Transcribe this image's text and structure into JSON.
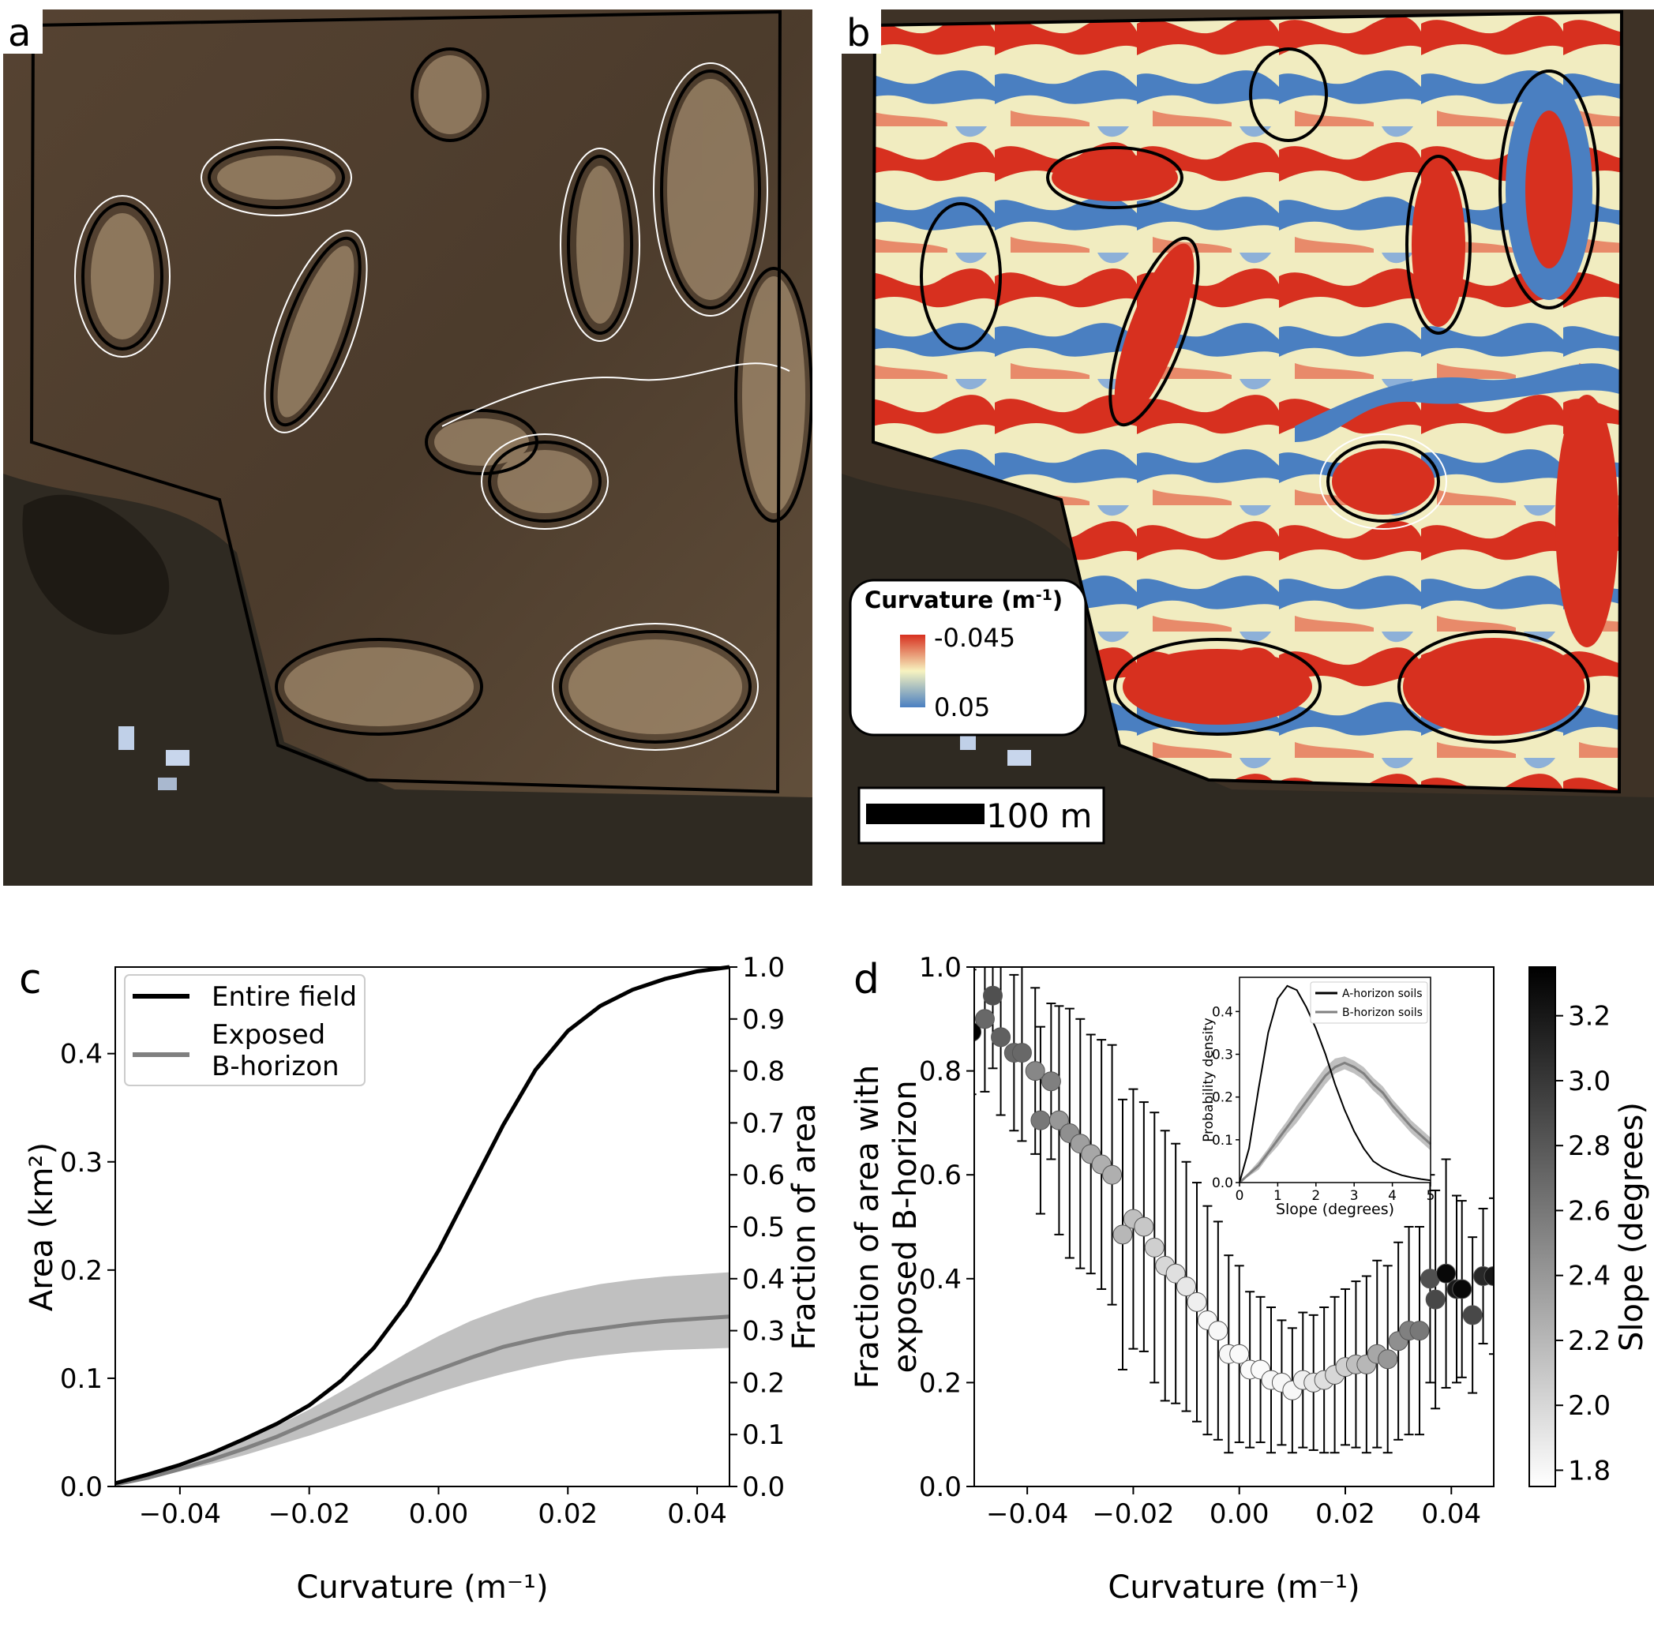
{
  "panels": {
    "a": {
      "letter": "a"
    },
    "b": {
      "letter": "b",
      "legend_title_main": "Curvature (m",
      "legend_title_exp": "-1",
      "legend_title_end": ")",
      "legend_max": "-0.045",
      "legend_min": "0.05",
      "scale_bar_label": "100 m"
    },
    "c": {
      "letter": "c"
    },
    "d": {
      "letter": "d"
    }
  },
  "colors": {
    "ink": "#000000",
    "gray_series": "#808080",
    "gray_band": "#c0c0c0",
    "curv_neg": "#d7301f",
    "curv_mid": "#f7f3c0",
    "curv_pos": "#4a7fc1",
    "soil_dark": "#4e3d2d",
    "soil_light": "#b59c7c"
  },
  "chart_data": [
    {
      "panel": "c",
      "type": "line",
      "xlabel": "Curvature (m⁻¹)",
      "ylabel": "Area (km²)",
      "ylabel_right": "Fraction of area",
      "xlim": [
        -0.05,
        0.045
      ],
      "ylim": [
        0,
        0.48
      ],
      "ylim_right": [
        0,
        1.0
      ],
      "xticks": [
        "-0.04",
        "-0.02",
        "0.00",
        "0.02",
        "0.04"
      ],
      "yticks": [
        "0.0",
        "0.1",
        "0.2",
        "0.3",
        "0.4"
      ],
      "yticks_right": [
        "0.0",
        "0.1",
        "0.2",
        "0.3",
        "0.4",
        "0.5",
        "0.6",
        "0.7",
        "0.8",
        "0.9",
        "1.0"
      ],
      "legend_position": "top-left",
      "x": [
        -0.05,
        -0.045,
        -0.04,
        -0.035,
        -0.03,
        -0.025,
        -0.02,
        -0.015,
        -0.01,
        -0.005,
        0.0,
        0.005,
        0.01,
        0.015,
        0.02,
        0.025,
        0.03,
        0.035,
        0.04,
        0.045
      ],
      "series": [
        {
          "name": "Entire field",
          "values": [
            0.003,
            0.011,
            0.02,
            0.031,
            0.044,
            0.058,
            0.075,
            0.098,
            0.128,
            0.168,
            0.218,
            0.276,
            0.334,
            0.385,
            0.421,
            0.444,
            0.459,
            0.469,
            0.476,
            0.48
          ]
        },
        {
          "name": "Exposed B-horizon",
          "values": [
            0.002,
            0.008,
            0.016,
            0.025,
            0.035,
            0.046,
            0.059,
            0.072,
            0.085,
            0.097,
            0.108,
            0.119,
            0.129,
            0.136,
            0.142,
            0.146,
            0.15,
            0.153,
            0.155,
            0.157
          ],
          "lower": [
            0.002,
            0.007,
            0.014,
            0.021,
            0.029,
            0.038,
            0.047,
            0.057,
            0.067,
            0.077,
            0.087,
            0.096,
            0.104,
            0.111,
            0.117,
            0.121,
            0.124,
            0.126,
            0.127,
            0.128
          ],
          "upper": [
            0.002,
            0.009,
            0.018,
            0.029,
            0.042,
            0.056,
            0.071,
            0.088,
            0.106,
            0.123,
            0.139,
            0.153,
            0.164,
            0.174,
            0.181,
            0.187,
            0.191,
            0.194,
            0.196,
            0.198
          ]
        }
      ]
    },
    {
      "panel": "d",
      "type": "scatter",
      "xlabel": "Curvature (m⁻¹)",
      "ylabel_line1": "Fraction of area with",
      "ylabel_line2": "exposed B-horizon",
      "colorbar_label": "Slope (degrees)",
      "colorbar_range": [
        1.75,
        3.35
      ],
      "colorbar_ticks": [
        "1.8",
        "2.0",
        "2.2",
        "2.4",
        "2.6",
        "2.8",
        "3.0",
        "3.2"
      ],
      "xlim": [
        -0.05,
        0.048
      ],
      "ylim": [
        0,
        1.0
      ],
      "xticks": [
        "-0.04",
        "-0.02",
        "0.00",
        "0.02",
        "0.04"
      ],
      "yticks": [
        "0.0",
        "0.2",
        "0.4",
        "0.6",
        "0.8",
        "1.0"
      ],
      "points": [
        {
          "x": -0.0505,
          "y": 0.875,
          "err": 0.12,
          "slope": 3.35
        },
        {
          "x": -0.048,
          "y": 0.9,
          "err": 0.14,
          "slope": 2.7
        },
        {
          "x": -0.0465,
          "y": 0.945,
          "err": 0.14,
          "slope": 2.85
        },
        {
          "x": -0.045,
          "y": 0.865,
          "err": 0.15,
          "slope": 2.75
        },
        {
          "x": -0.0425,
          "y": 0.835,
          "err": 0.15,
          "slope": 2.7
        },
        {
          "x": -0.041,
          "y": 0.835,
          "err": 0.17,
          "slope": 2.7
        },
        {
          "x": -0.0385,
          "y": 0.8,
          "err": 0.16,
          "slope": 2.5
        },
        {
          "x": -0.0375,
          "y": 0.705,
          "err": 0.18,
          "slope": 2.6
        },
        {
          "x": -0.0355,
          "y": 0.78,
          "err": 0.15,
          "slope": 2.55
        },
        {
          "x": -0.034,
          "y": 0.705,
          "err": 0.22,
          "slope": 2.4
        },
        {
          "x": -0.032,
          "y": 0.68,
          "err": 0.24,
          "slope": 2.45
        },
        {
          "x": -0.03,
          "y": 0.66,
          "err": 0.24,
          "slope": 2.35
        },
        {
          "x": -0.028,
          "y": 0.64,
          "err": 0.23,
          "slope": 2.3
        },
        {
          "x": -0.026,
          "y": 0.62,
          "err": 0.24,
          "slope": 2.25
        },
        {
          "x": -0.024,
          "y": 0.6,
          "err": 0.25,
          "slope": 2.25
        },
        {
          "x": -0.022,
          "y": 0.485,
          "err": 0.26,
          "slope": 2.2
        },
        {
          "x": -0.02,
          "y": 0.515,
          "err": 0.25,
          "slope": 2.15
        },
        {
          "x": -0.018,
          "y": 0.5,
          "err": 0.24,
          "slope": 2.1
        },
        {
          "x": -0.016,
          "y": 0.46,
          "err": 0.26,
          "slope": 2.05
        },
        {
          "x": -0.014,
          "y": 0.425,
          "err": 0.26,
          "slope": 2.0
        },
        {
          "x": -0.012,
          "y": 0.41,
          "err": 0.25,
          "slope": 1.95
        },
        {
          "x": -0.01,
          "y": 0.385,
          "err": 0.24,
          "slope": 1.9
        },
        {
          "x": -0.008,
          "y": 0.355,
          "err": 0.23,
          "slope": 1.85
        },
        {
          "x": -0.006,
          "y": 0.32,
          "err": 0.22,
          "slope": 1.8
        },
        {
          "x": -0.004,
          "y": 0.3,
          "err": 0.21,
          "slope": 1.8
        },
        {
          "x": -0.002,
          "y": 0.255,
          "err": 0.19,
          "slope": 1.8
        },
        {
          "x": 0.0,
          "y": 0.255,
          "err": 0.17,
          "slope": 1.78
        },
        {
          "x": 0.002,
          "y": 0.225,
          "err": 0.15,
          "slope": 1.78
        },
        {
          "x": 0.004,
          "y": 0.225,
          "err": 0.14,
          "slope": 1.78
        },
        {
          "x": 0.006,
          "y": 0.205,
          "err": 0.14,
          "slope": 1.8
        },
        {
          "x": 0.008,
          "y": 0.2,
          "err": 0.12,
          "slope": 1.8
        },
        {
          "x": 0.01,
          "y": 0.185,
          "err": 0.12,
          "slope": 1.8
        },
        {
          "x": 0.012,
          "y": 0.205,
          "err": 0.13,
          "slope": 1.85
        },
        {
          "x": 0.014,
          "y": 0.2,
          "err": 0.13,
          "slope": 1.9
        },
        {
          "x": 0.016,
          "y": 0.205,
          "err": 0.14,
          "slope": 1.95
        },
        {
          "x": 0.018,
          "y": 0.215,
          "err": 0.15,
          "slope": 2.0
        },
        {
          "x": 0.02,
          "y": 0.23,
          "err": 0.15,
          "slope": 2.05
        },
        {
          "x": 0.022,
          "y": 0.235,
          "err": 0.16,
          "slope": 2.15
        },
        {
          "x": 0.024,
          "y": 0.235,
          "err": 0.17,
          "slope": 2.2
        },
        {
          "x": 0.026,
          "y": 0.255,
          "err": 0.18,
          "slope": 2.3
        },
        {
          "x": 0.028,
          "y": 0.245,
          "err": 0.18,
          "slope": 2.4
        },
        {
          "x": 0.03,
          "y": 0.28,
          "err": 0.19,
          "slope": 2.45
        },
        {
          "x": 0.032,
          "y": 0.3,
          "err": 0.2,
          "slope": 2.55
        },
        {
          "x": 0.034,
          "y": 0.3,
          "err": 0.2,
          "slope": 2.6
        },
        {
          "x": 0.036,
          "y": 0.4,
          "err": 0.2,
          "slope": 2.85
        },
        {
          "x": 0.037,
          "y": 0.36,
          "err": 0.21,
          "slope": 2.9
        },
        {
          "x": 0.039,
          "y": 0.41,
          "err": 0.22,
          "slope": 3.3
        },
        {
          "x": 0.041,
          "y": 0.38,
          "err": 0.18,
          "slope": 3.2
        },
        {
          "x": 0.042,
          "y": 0.38,
          "err": 0.17,
          "slope": 3.3
        },
        {
          "x": 0.044,
          "y": 0.33,
          "err": 0.15,
          "slope": 2.9
        },
        {
          "x": 0.046,
          "y": 0.405,
          "err": 0.13,
          "slope": 3.1
        },
        {
          "x": 0.048,
          "y": 0.405,
          "err": 0.15,
          "slope": 3.2
        }
      ]
    },
    {
      "panel": "d-inset",
      "type": "line",
      "xlabel": "Slope (degrees)",
      "ylabel": "Probability density",
      "xlim": [
        0,
        5
      ],
      "ylim": [
        0,
        0.48
      ],
      "xticks": [
        "0",
        "1",
        "2",
        "3",
        "4",
        "5"
      ],
      "yticks": [
        "0.0",
        "0.1",
        "0.2",
        "0.3",
        "0.4"
      ],
      "legend_position": "top-right",
      "x": [
        0,
        0.25,
        0.5,
        0.75,
        1.0,
        1.25,
        1.5,
        1.75,
        2.0,
        2.25,
        2.5,
        2.75,
        3.0,
        3.25,
        3.5,
        3.75,
        4.0,
        4.25,
        4.5,
        4.75,
        5.0
      ],
      "series": [
        {
          "name": "A-horizon soils",
          "values": [
            0.0,
            0.08,
            0.22,
            0.35,
            0.43,
            0.46,
            0.45,
            0.41,
            0.36,
            0.3,
            0.23,
            0.17,
            0.12,
            0.08,
            0.05,
            0.035,
            0.025,
            0.017,
            0.012,
            0.008,
            0.005
          ]
        },
        {
          "name": "B-horizon soils",
          "values": [
            0.0,
            0.02,
            0.04,
            0.07,
            0.1,
            0.13,
            0.16,
            0.19,
            0.22,
            0.25,
            0.27,
            0.28,
            0.27,
            0.255,
            0.23,
            0.21,
            0.18,
            0.155,
            0.13,
            0.11,
            0.09
          ],
          "lower": [
            0.0,
            0.015,
            0.03,
            0.06,
            0.085,
            0.115,
            0.14,
            0.17,
            0.2,
            0.23,
            0.255,
            0.265,
            0.255,
            0.24,
            0.215,
            0.195,
            0.165,
            0.14,
            0.115,
            0.095,
            0.075
          ],
          "upper": [
            0.0,
            0.025,
            0.05,
            0.08,
            0.115,
            0.145,
            0.18,
            0.21,
            0.24,
            0.27,
            0.29,
            0.295,
            0.285,
            0.27,
            0.245,
            0.225,
            0.195,
            0.17,
            0.145,
            0.125,
            0.105
          ]
        }
      ]
    }
  ]
}
